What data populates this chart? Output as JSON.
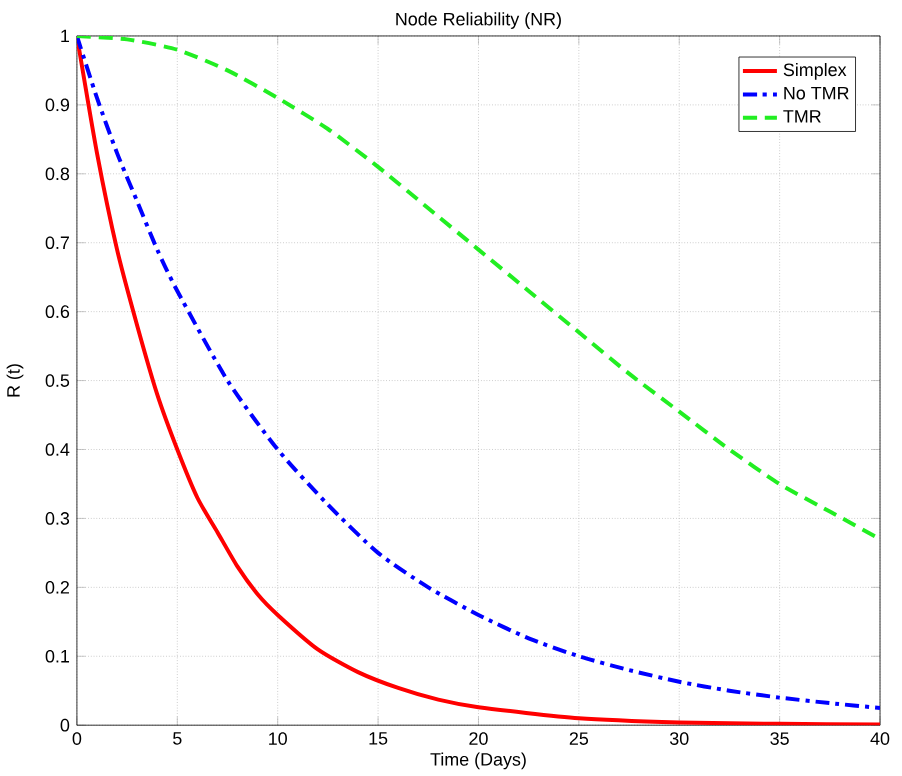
{
  "chart_data": {
    "type": "line",
    "title": "Node Reliability (NR)",
    "xlabel": "Time (Days)",
    "ylabel": "R (t)",
    "xlim": [
      0,
      40
    ],
    "ylim": [
      0,
      1
    ],
    "xticks": [
      0,
      5,
      10,
      15,
      20,
      25,
      30,
      35,
      40
    ],
    "yticks": [
      0,
      0.1,
      0.2,
      0.3,
      0.4,
      0.5,
      0.6,
      0.7,
      0.8,
      0.9,
      1
    ],
    "grid": true,
    "legend": "top right",
    "marker": "none",
    "series": [
      {
        "name": "Simplex",
        "color": "#ff0000",
        "line_style": "solid",
        "x": [
          0,
          1,
          2,
          3,
          4,
          5,
          6,
          7,
          8,
          9,
          10,
          12,
          14,
          16,
          18,
          20,
          25,
          30,
          35,
          40
        ],
        "values": [
          1,
          0.83,
          0.69,
          0.58,
          0.48,
          0.4,
          0.33,
          0.28,
          0.23,
          0.19,
          0.16,
          0.11,
          0.077,
          0.054,
          0.037,
          0.026,
          0.01,
          0.004,
          0.002,
          0.001
        ]
      },
      {
        "name": "No TMR",
        "color": "#0000ff",
        "line_style": "dashdot",
        "x": [
          0,
          1,
          2,
          3,
          4,
          5,
          7.5,
          10,
          12.5,
          15,
          17.5,
          20,
          22.5,
          25,
          27.5,
          30,
          32.5,
          35,
          37.5,
          40
        ],
        "values": [
          1,
          0.91,
          0.83,
          0.76,
          0.69,
          0.63,
          0.5,
          0.4,
          0.32,
          0.25,
          0.2,
          0.16,
          0.126,
          0.1,
          0.08,
          0.063,
          0.05,
          0.04,
          0.032,
          0.025
        ]
      },
      {
        "name": "TMR",
        "color": "#22ee22",
        "line_style": "dashed",
        "x": [
          0,
          2.5,
          5,
          7.5,
          10,
          12.5,
          15,
          17.5,
          20,
          22.5,
          25,
          27.5,
          30,
          32.5,
          35,
          37.5,
          40
        ],
        "values": [
          1,
          0.995,
          0.98,
          0.95,
          0.91,
          0.865,
          0.81,
          0.75,
          0.69,
          0.63,
          0.57,
          0.51,
          0.455,
          0.4,
          0.35,
          0.31,
          0.27
        ]
      }
    ]
  }
}
